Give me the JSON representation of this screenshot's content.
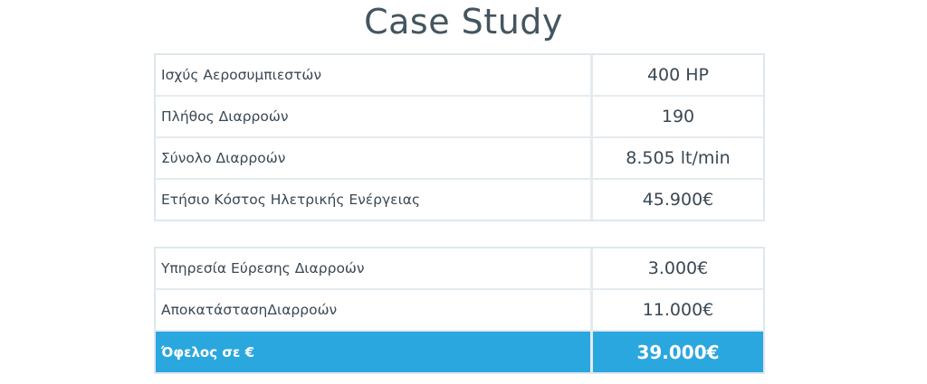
{
  "title": "Case Study",
  "table_1": {
    "rows": [
      {
        "label": "Ισχύς Αεροσυμπιεστών",
        "value": "400 HP"
      },
      {
        "label": "Πλήθος Διαρροών",
        "value": "190"
      },
      {
        "label": "Σύνολο Διαρροών",
        "value": "8.505 lt/min"
      },
      {
        "label": "Ετήσιο Κόστος Ηλετρικής Ενέργειας",
        "value": "45.900€"
      }
    ]
  },
  "table_2": {
    "rows": [
      {
        "label": "Υπηρεσία Εύρεσης Διαρροών",
        "value": "3.000€"
      },
      {
        "label": "ΑποκατάστασηΔιαρροών",
        "value": "11.000€"
      }
    ],
    "total": {
      "label": "Όφελος σε €",
      "value": "39.000€"
    }
  },
  "colors": {
    "highlight": "#2aa7de",
    "border": "#e4ebef",
    "text": "#3a4853"
  }
}
